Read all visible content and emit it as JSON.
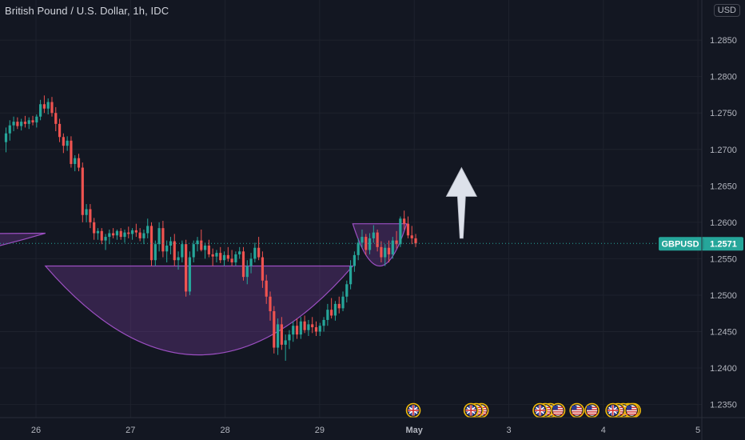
{
  "header": {
    "title": "British Pound / U.S. Dollar, 1h, IDC",
    "currency": "USD"
  },
  "theme": {
    "background": "#131722",
    "up_color": "#26a69a",
    "down_color": "#ef5350",
    "price_label_bg": "#26a69a",
    "pattern_fill": "#7b3fa0",
    "pattern_stroke": "#9c4fc2",
    "arrow_color": "#dde1ea"
  },
  "chart_data": {
    "type": "candlestick",
    "title": "British Pound / U.S. Dollar, 1h, IDC",
    "symbol": "GBPUSD",
    "last_price": "1.2571",
    "y_ticks": [
      "1.2350",
      "1.2400",
      "1.2450",
      "1.2500",
      "1.2550",
      "1.2600",
      "1.2650",
      "1.2700",
      "1.2750",
      "1.2800",
      "1.2850"
    ],
    "y_range": [
      1.2332,
      1.2905
    ],
    "x_ticks": [
      "26",
      "27",
      "28",
      "29",
      "May",
      "3",
      "4",
      "5"
    ],
    "candles": [
      [
        1.271,
        1.273,
        1.2696,
        1.2722
      ],
      [
        1.2722,
        1.274,
        1.2712,
        1.2733
      ],
      [
        1.2733,
        1.2745,
        1.2725,
        1.2738
      ],
      [
        1.2738,
        1.2744,
        1.2728,
        1.2732
      ],
      [
        1.2732,
        1.2742,
        1.2726,
        1.2738
      ],
      [
        1.2738,
        1.2746,
        1.273,
        1.2735
      ],
      [
        1.2735,
        1.2744,
        1.2728,
        1.274
      ],
      [
        1.274,
        1.2746,
        1.2733,
        1.2737
      ],
      [
        1.2737,
        1.2748,
        1.273,
        1.2745
      ],
      [
        1.2745,
        1.2768,
        1.274,
        1.2762
      ],
      [
        1.2762,
        1.2774,
        1.275,
        1.2756
      ],
      [
        1.2756,
        1.277,
        1.2748,
        1.2765
      ],
      [
        1.2765,
        1.2772,
        1.2745,
        1.275
      ],
      [
        1.275,
        1.2758,
        1.2725,
        1.2735
      ],
      [
        1.2735,
        1.2742,
        1.271,
        1.2717
      ],
      [
        1.2717,
        1.2722,
        1.2695,
        1.2705
      ],
      [
        1.2705,
        1.2718,
        1.2698,
        1.2712
      ],
      [
        1.2712,
        1.2718,
        1.2675,
        1.268
      ],
      [
        1.268,
        1.2692,
        1.267,
        1.2688
      ],
      [
        1.2688,
        1.2694,
        1.267,
        1.2675
      ],
      [
        1.2675,
        1.2682,
        1.26,
        1.261
      ],
      [
        1.261,
        1.2625,
        1.26,
        1.2618
      ],
      [
        1.2618,
        1.2625,
        1.2592,
        1.26
      ],
      [
        1.26,
        1.2606,
        1.2576,
        1.2585
      ],
      [
        1.2585,
        1.2592,
        1.2576,
        1.2588
      ],
      [
        1.2588,
        1.2592,
        1.257,
        1.2575
      ],
      [
        1.2575,
        1.2584,
        1.2562,
        1.258
      ],
      [
        1.258,
        1.259,
        1.257,
        1.2585
      ],
      [
        1.2585,
        1.2592,
        1.2578,
        1.2582
      ],
      [
        1.2582,
        1.259,
        1.2576,
        1.2588
      ],
      [
        1.2588,
        1.2592,
        1.2576,
        1.258
      ],
      [
        1.258,
        1.259,
        1.2572,
        1.2586
      ],
      [
        1.2586,
        1.2594,
        1.2578,
        1.2584
      ],
      [
        1.2584,
        1.2592,
        1.2576,
        1.2589
      ],
      [
        1.2589,
        1.2598,
        1.258,
        1.2586
      ],
      [
        1.2586,
        1.2592,
        1.2574,
        1.2578
      ],
      [
        1.2578,
        1.259,
        1.257,
        1.2585
      ],
      [
        1.2585,
        1.2605,
        1.2578,
        1.2595
      ],
      [
        1.2595,
        1.26,
        1.254,
        1.2548
      ],
      [
        1.2548,
        1.2575,
        1.254,
        1.257
      ],
      [
        1.257,
        1.26,
        1.256,
        1.2592
      ],
      [
        1.2592,
        1.2602,
        1.2552,
        1.256
      ],
      [
        1.256,
        1.2575,
        1.2545,
        1.2568
      ],
      [
        1.2568,
        1.258,
        1.2556,
        1.2574
      ],
      [
        1.2574,
        1.2584,
        1.254,
        1.2548
      ],
      [
        1.2548,
        1.256,
        1.2535,
        1.2552
      ],
      [
        1.2552,
        1.2575,
        1.2545,
        1.257
      ],
      [
        1.257,
        1.2576,
        1.2498,
        1.2505
      ],
      [
        1.2505,
        1.256,
        1.25,
        1.2552
      ],
      [
        1.2552,
        1.2575,
        1.2545,
        1.257
      ],
      [
        1.257,
        1.258,
        1.256,
        1.2575
      ],
      [
        1.2575,
        1.259,
        1.256,
        1.2562
      ],
      [
        1.2562,
        1.2572,
        1.255,
        1.2568
      ],
      [
        1.2568,
        1.2576,
        1.2552,
        1.2556
      ],
      [
        1.2556,
        1.2564,
        1.254,
        1.2553
      ],
      [
        1.2553,
        1.2562,
        1.2545,
        1.2558
      ],
      [
        1.2558,
        1.2566,
        1.2544,
        1.2548
      ],
      [
        1.2548,
        1.256,
        1.254,
        1.2555
      ],
      [
        1.2555,
        1.2566,
        1.2546,
        1.255
      ],
      [
        1.255,
        1.2562,
        1.254,
        1.2545
      ],
      [
        1.2545,
        1.256,
        1.254,
        1.2556
      ],
      [
        1.2556,
        1.2566,
        1.255,
        1.256
      ],
      [
        1.256,
        1.2566,
        1.252,
        1.2525
      ],
      [
        1.2525,
        1.2548,
        1.2515,
        1.254
      ],
      [
        1.254,
        1.2558,
        1.253,
        1.255
      ],
      [
        1.255,
        1.2572,
        1.2545,
        1.2565
      ],
      [
        1.2565,
        1.258,
        1.2548,
        1.2552
      ],
      [
        1.2552,
        1.256,
        1.251,
        1.252
      ],
      [
        1.252,
        1.2528,
        1.2488,
        1.2498
      ],
      [
        1.2498,
        1.2505,
        1.2465,
        1.2478
      ],
      [
        1.2478,
        1.2485,
        1.242,
        1.2428
      ],
      [
        1.2428,
        1.2468,
        1.2418,
        1.246
      ],
      [
        1.246,
        1.247,
        1.2425,
        1.2432
      ],
      [
        1.2432,
        1.2446,
        1.241,
        1.2438
      ],
      [
        1.2438,
        1.2452,
        1.2426,
        1.2446
      ],
      [
        1.2446,
        1.2464,
        1.2436,
        1.2458
      ],
      [
        1.2458,
        1.2468,
        1.244,
        1.2446
      ],
      [
        1.2446,
        1.247,
        1.244,
        1.2464
      ],
      [
        1.2464,
        1.2472,
        1.2448,
        1.2452
      ],
      [
        1.2452,
        1.2466,
        1.2444,
        1.246
      ],
      [
        1.246,
        1.247,
        1.2448,
        1.2456
      ],
      [
        1.2456,
        1.2464,
        1.2444,
        1.245
      ],
      [
        1.245,
        1.2462,
        1.2444,
        1.2458
      ],
      [
        1.2458,
        1.247,
        1.245,
        1.2466
      ],
      [
        1.2466,
        1.2488,
        1.2458,
        1.248
      ],
      [
        1.248,
        1.2496,
        1.2468,
        1.2472
      ],
      [
        1.2472,
        1.2492,
        1.2465,
        1.2488
      ],
      [
        1.2488,
        1.2498,
        1.2475,
        1.2482
      ],
      [
        1.2482,
        1.2505,
        1.2478,
        1.2498
      ],
      [
        1.2498,
        1.252,
        1.249,
        1.2515
      ],
      [
        1.2515,
        1.2548,
        1.2508,
        1.254
      ],
      [
        1.254,
        1.256,
        1.2532,
        1.2555
      ],
      [
        1.2555,
        1.2578,
        1.2548,
        1.2572
      ],
      [
        1.2572,
        1.259,
        1.2565,
        1.258
      ],
      [
        1.258,
        1.2584,
        1.2555,
        1.2562
      ],
      [
        1.2562,
        1.2585,
        1.2556,
        1.2578
      ],
      [
        1.2578,
        1.2596,
        1.2572,
        1.2586
      ],
      [
        1.2586,
        1.259,
        1.256,
        1.2566
      ],
      [
        1.2566,
        1.2574,
        1.2545,
        1.2552
      ],
      [
        1.2552,
        1.257,
        1.254,
        1.2565
      ],
      [
        1.2565,
        1.2575,
        1.2545,
        1.2556
      ],
      [
        1.2556,
        1.258,
        1.255,
        1.2575
      ],
      [
        1.2575,
        1.2588,
        1.2564,
        1.257
      ],
      [
        1.257,
        1.2608,
        1.2566,
        1.2605
      ],
      [
        1.2605,
        1.2616,
        1.259,
        1.2598
      ],
      [
        1.2598,
        1.2608,
        1.2578,
        1.2582
      ],
      [
        1.2582,
        1.2595,
        1.257,
        1.2578
      ],
      [
        1.2578,
        1.2584,
        1.2566,
        1.2571
      ]
    ],
    "patterns": [
      {
        "name": "left-cup",
        "x": [
          19.4,
          26.1
        ],
        "top": [
          1.258,
          1.2585
        ],
        "bottom": 1.252
      },
      {
        "name": "main-cup",
        "x": [
          26.1,
          29.35
        ],
        "top": [
          1.254,
          1.254
        ],
        "bottom": 1.2418
      },
      {
        "name": "right-cup",
        "x": [
          29.35,
          29.92
        ],
        "top": [
          1.2598,
          1.2598
        ],
        "bottom": 1.254
      }
    ],
    "arrow": {
      "x": 30.5,
      "from": 1.2578,
      "to": 1.2675
    },
    "events": [
      {
        "x": 29.99,
        "flags": [
          "gb"
        ]
      },
      {
        "x": 30.6,
        "flags": [
          "gb",
          "us",
          "us"
        ]
      },
      {
        "x": 31.33,
        "flags": [
          "gb",
          "us",
          "us"
        ]
      },
      {
        "x": 31.52,
        "flags": [
          "us"
        ]
      },
      {
        "x": 31.72,
        "flags": [
          "us"
        ]
      },
      {
        "x": 31.88,
        "flags": [
          "us"
        ]
      },
      {
        "x": 32.1,
        "flags": [
          "gb",
          "us",
          "us",
          "us",
          "us"
        ]
      },
      {
        "x": 32.3,
        "flags": [
          "us"
        ]
      }
    ]
  }
}
